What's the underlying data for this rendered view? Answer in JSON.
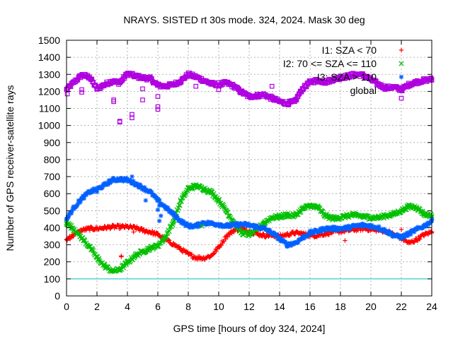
{
  "chart_data": {
    "type": "scatter",
    "title": "NRAYS. SISTED rt 30s mode. 324, 2024. Mask 30 deg",
    "xlabel": "GPS time [hours of doy 324, 2024]",
    "ylabel": "Number of GPS receiver-satellite rays",
    "xlim": [
      0,
      24
    ],
    "ylim": [
      0,
      1500
    ],
    "grid": true,
    "legend_position": "top-right",
    "x_ticks": [
      "0",
      "2",
      "4",
      "6",
      "8",
      "10",
      "12",
      "14",
      "16",
      "18",
      "20",
      "22",
      "24"
    ],
    "y_ticks": [
      "0",
      "100",
      "200",
      "300",
      "400",
      "500",
      "600",
      "700",
      "800",
      "900",
      "1000",
      "1100",
      "1200",
      "1300",
      "1400",
      "1500"
    ],
    "reference_line": {
      "y": 100,
      "color": "#00c0c0"
    },
    "series": [
      {
        "name": "I1: SZA < 70",
        "marker": "+",
        "color": "#ff0000",
        "x": [
          0,
          0.5,
          1,
          1.5,
          2,
          2.5,
          3,
          3.5,
          4,
          4.5,
          5,
          5.5,
          6,
          6.5,
          7,
          7.5,
          8,
          8.5,
          9,
          9.5,
          10,
          10.5,
          11,
          11.5,
          12,
          12.5,
          13,
          13.5,
          14,
          14.5,
          15,
          15.5,
          16,
          16.5,
          17,
          17.5,
          18,
          18.5,
          19,
          19.5,
          20,
          20.5,
          21,
          21.5,
          22,
          22.5,
          23,
          23.5,
          24
        ],
        "y": [
          330,
          360,
          385,
          395,
          395,
          400,
          405,
          405,
          405,
          400,
          385,
          375,
          360,
          330,
          305,
          275,
          245,
          225,
          222,
          235,
          285,
          350,
          385,
          395,
          380,
          365,
          355,
          355,
          350,
          360,
          370,
          365,
          355,
          355,
          365,
          375,
          380,
          385,
          390,
          395,
          390,
          385,
          380,
          360,
          340,
          310,
          330,
          360,
          375
        ]
      },
      {
        "name": "I2: 70 <= SZA <= 110",
        "marker": "x",
        "color": "#00c000",
        "x": [
          0,
          0.5,
          1,
          1.5,
          2,
          2.5,
          3,
          3.5,
          4,
          4.5,
          5,
          5.5,
          6,
          6.5,
          7,
          7.5,
          8,
          8.5,
          9,
          9.5,
          10,
          10.5,
          11,
          11.5,
          12,
          12.5,
          13,
          13.5,
          14,
          14.5,
          15,
          15.5,
          16,
          16.5,
          17,
          17.5,
          18,
          18.5,
          19,
          19.5,
          20,
          20.5,
          21,
          21.5,
          22,
          22.5,
          23,
          23.5,
          24
        ],
        "y": [
          430,
          390,
          340,
          290,
          225,
          175,
          145,
          155,
          195,
          235,
          260,
          280,
          295,
          345,
          430,
          555,
          630,
          645,
          630,
          610,
          560,
          500,
          430,
          370,
          360,
          390,
          430,
          460,
          465,
          475,
          470,
          510,
          530,
          520,
          470,
          455,
          460,
          470,
          475,
          465,
          460,
          460,
          470,
          480,
          500,
          525,
          520,
          480,
          470
        ]
      },
      {
        "name": "I3: SZA > 110",
        "marker": "*",
        "color": "#0060ff",
        "x": [
          0,
          0.5,
          1,
          1.5,
          2,
          2.5,
          3,
          3.5,
          4,
          4.5,
          5,
          5.5,
          6,
          6.5,
          7,
          7.5,
          8,
          8.5,
          9,
          9.5,
          10,
          10.5,
          11,
          11.5,
          12,
          12.5,
          13,
          13.5,
          14,
          14.5,
          15,
          15.5,
          16,
          16.5,
          17,
          17.5,
          18,
          18.5,
          19,
          19.5,
          20,
          20.5,
          21,
          21.5,
          22,
          22.5,
          23,
          23.5,
          24
        ],
        "y": [
          450,
          520,
          570,
          610,
          625,
          650,
          680,
          685,
          680,
          660,
          635,
          610,
          560,
          520,
          480,
          440,
          410,
          410,
          430,
          425,
          420,
          410,
          415,
          420,
          415,
          405,
          395,
          370,
          335,
          300,
          310,
          340,
          370,
          380,
          395,
          395,
          395,
          400,
          410,
          415,
          410,
          400,
          380,
          355,
          345,
          365,
          390,
          410,
          440
        ]
      },
      {
        "name": "global",
        "marker": "square",
        "color": "#b000e0",
        "x": [
          0,
          0.5,
          1,
          1.5,
          2,
          2.5,
          3,
          3.5,
          4,
          4.5,
          5,
          5.5,
          6,
          6.5,
          7,
          7.5,
          8,
          8.5,
          9,
          9.5,
          10,
          10.5,
          11,
          11.5,
          12,
          12.5,
          13,
          13.5,
          14,
          14.5,
          15,
          15.5,
          16,
          16.5,
          17,
          17.5,
          18,
          18.5,
          19,
          19.5,
          20,
          20.5,
          21,
          21.5,
          22,
          22.5,
          23,
          23.5,
          24
        ],
        "y": [
          1210,
          1255,
          1295,
          1285,
          1215,
          1240,
          1260,
          1250,
          1305,
          1290,
          1280,
          1275,
          1235,
          1230,
          1240,
          1260,
          1300,
          1285,
          1265,
          1245,
          1240,
          1250,
          1230,
          1195,
          1170,
          1175,
          1180,
          1160,
          1140,
          1130,
          1140,
          1215,
          1255,
          1265,
          1255,
          1270,
          1280,
          1290,
          1300,
          1295,
          1270,
          1240,
          1220,
          1225,
          1210,
          1240,
          1255,
          1265,
          1270
        ]
      }
    ],
    "outliers": {
      "name": "global",
      "points": [
        [
          3.5,
          1020
        ],
        [
          3.5,
          1025
        ],
        [
          3.1,
          1140
        ],
        [
          3.1,
          1150
        ],
        [
          4.3,
          1045
        ],
        [
          4.3,
          1065
        ],
        [
          5,
          1215
        ],
        [
          5,
          1150
        ],
        [
          6,
          1095
        ],
        [
          6,
          1110
        ],
        [
          6,
          1170
        ],
        [
          1,
          1195
        ],
        [
          1,
          1210
        ],
        [
          0.05,
          1185
        ],
        [
          22,
          1160
        ],
        [
          8.5,
          1230
        ],
        [
          13.5,
          1230
        ],
        [
          10,
          1210
        ]
      ]
    },
    "series_outliers": {
      "I1: SZA < 70": [
        [
          3.6,
          235
        ],
        [
          3.6,
          230
        ],
        [
          4.4,
          375
        ],
        [
          0.2,
          350
        ],
        [
          18.3,
          325
        ],
        [
          22,
          390
        ]
      ],
      "I3: SZA > 110": [
        [
          5.2,
          560
        ],
        [
          6,
          505
        ],
        [
          6.1,
          530
        ],
        [
          6.2,
          470
        ],
        [
          6.1,
          440
        ],
        [
          0.1,
          460
        ],
        [
          2,
          610
        ],
        [
          4.3,
          700
        ],
        [
          0.1,
          470
        ]
      ],
      "I2: 70 <= SZA <= 110": [
        [
          2.1,
          210
        ],
        [
          8.9,
          410
        ],
        [
          21.9,
          490
        ],
        [
          22.4,
          520
        ]
      ]
    }
  }
}
